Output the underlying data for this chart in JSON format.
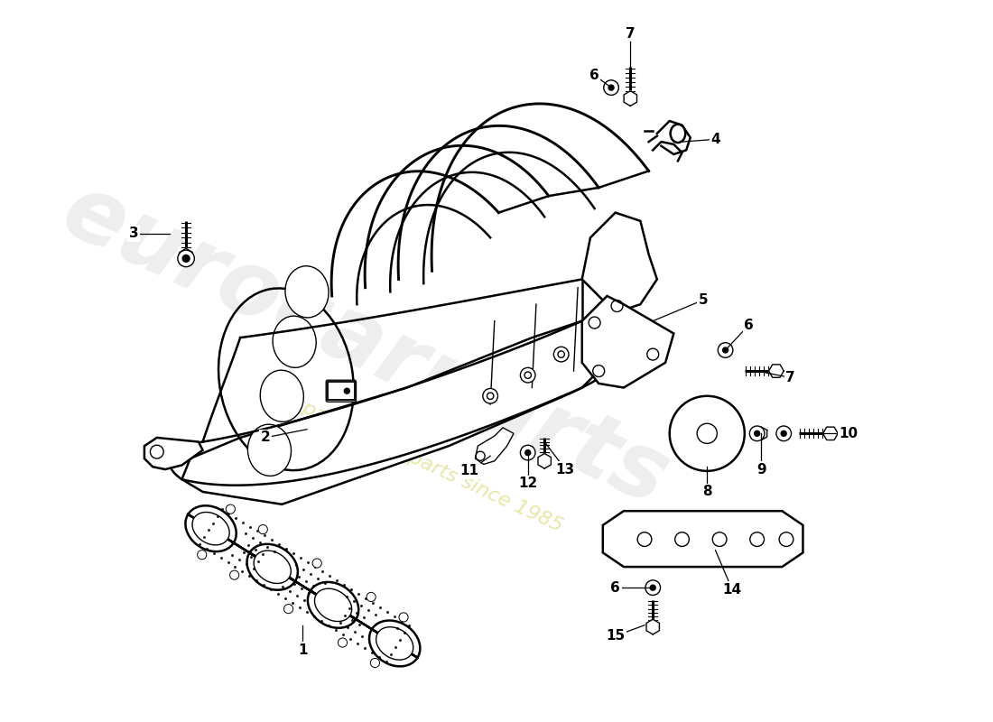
{
  "bg_color": "#ffffff",
  "line_color": "#000000",
  "lw_main": 1.8,
  "lw_thin": 1.0,
  "watermark1": "eurocarparts",
  "watermark2": "a passion for parts since 1985",
  "wm_color1": "#c8c8c8",
  "wm_color2": "#d4d460",
  "figsize": [
    11.0,
    8.0
  ],
  "dpi": 100,
  "xlim": [
    0,
    11
  ],
  "ylim": [
    0,
    8
  ]
}
